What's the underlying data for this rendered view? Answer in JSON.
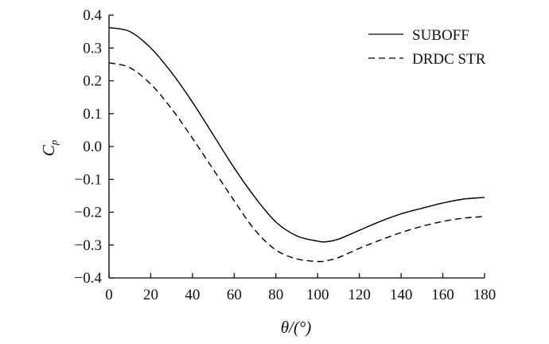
{
  "chart_data": {
    "type": "line",
    "title": "",
    "xlabel": "θ/(°)",
    "ylabel": "Cp",
    "xlim": [
      0,
      180
    ],
    "ylim": [
      -0.4,
      0.4
    ],
    "xticks": [
      "0",
      "20",
      "40",
      "60",
      "80",
      "100",
      "120",
      "140",
      "160",
      "180"
    ],
    "yticks": [
      "0.4",
      "0.3",
      "0.2",
      "0.1",
      "0.0",
      "−0.1",
      "−0.2",
      "−0.3",
      "−0.4"
    ],
    "grid": false,
    "legend_position": "top-right",
    "x": [
      0,
      10,
      20,
      30,
      40,
      50,
      60,
      70,
      80,
      90,
      100,
      104,
      110,
      120,
      130,
      140,
      150,
      160,
      170,
      180
    ],
    "series": [
      {
        "name": "SUBOFF",
        "line_style": "solid",
        "color": "#000000",
        "values": [
          0.362,
          0.35,
          0.3,
          0.225,
          0.135,
          0.035,
          -0.065,
          -0.155,
          -0.23,
          -0.272,
          -0.288,
          -0.29,
          -0.282,
          -0.255,
          -0.228,
          -0.205,
          -0.188,
          -0.172,
          -0.16,
          -0.155
        ]
      },
      {
        "name": "DRDC STR",
        "line_style": "dashed",
        "color": "#000000",
        "values": [
          0.255,
          0.24,
          0.19,
          0.115,
          0.025,
          -0.07,
          -0.165,
          -0.255,
          -0.315,
          -0.342,
          -0.35,
          -0.348,
          -0.338,
          -0.31,
          -0.285,
          -0.262,
          -0.243,
          -0.228,
          -0.218,
          -0.213
        ]
      }
    ]
  }
}
